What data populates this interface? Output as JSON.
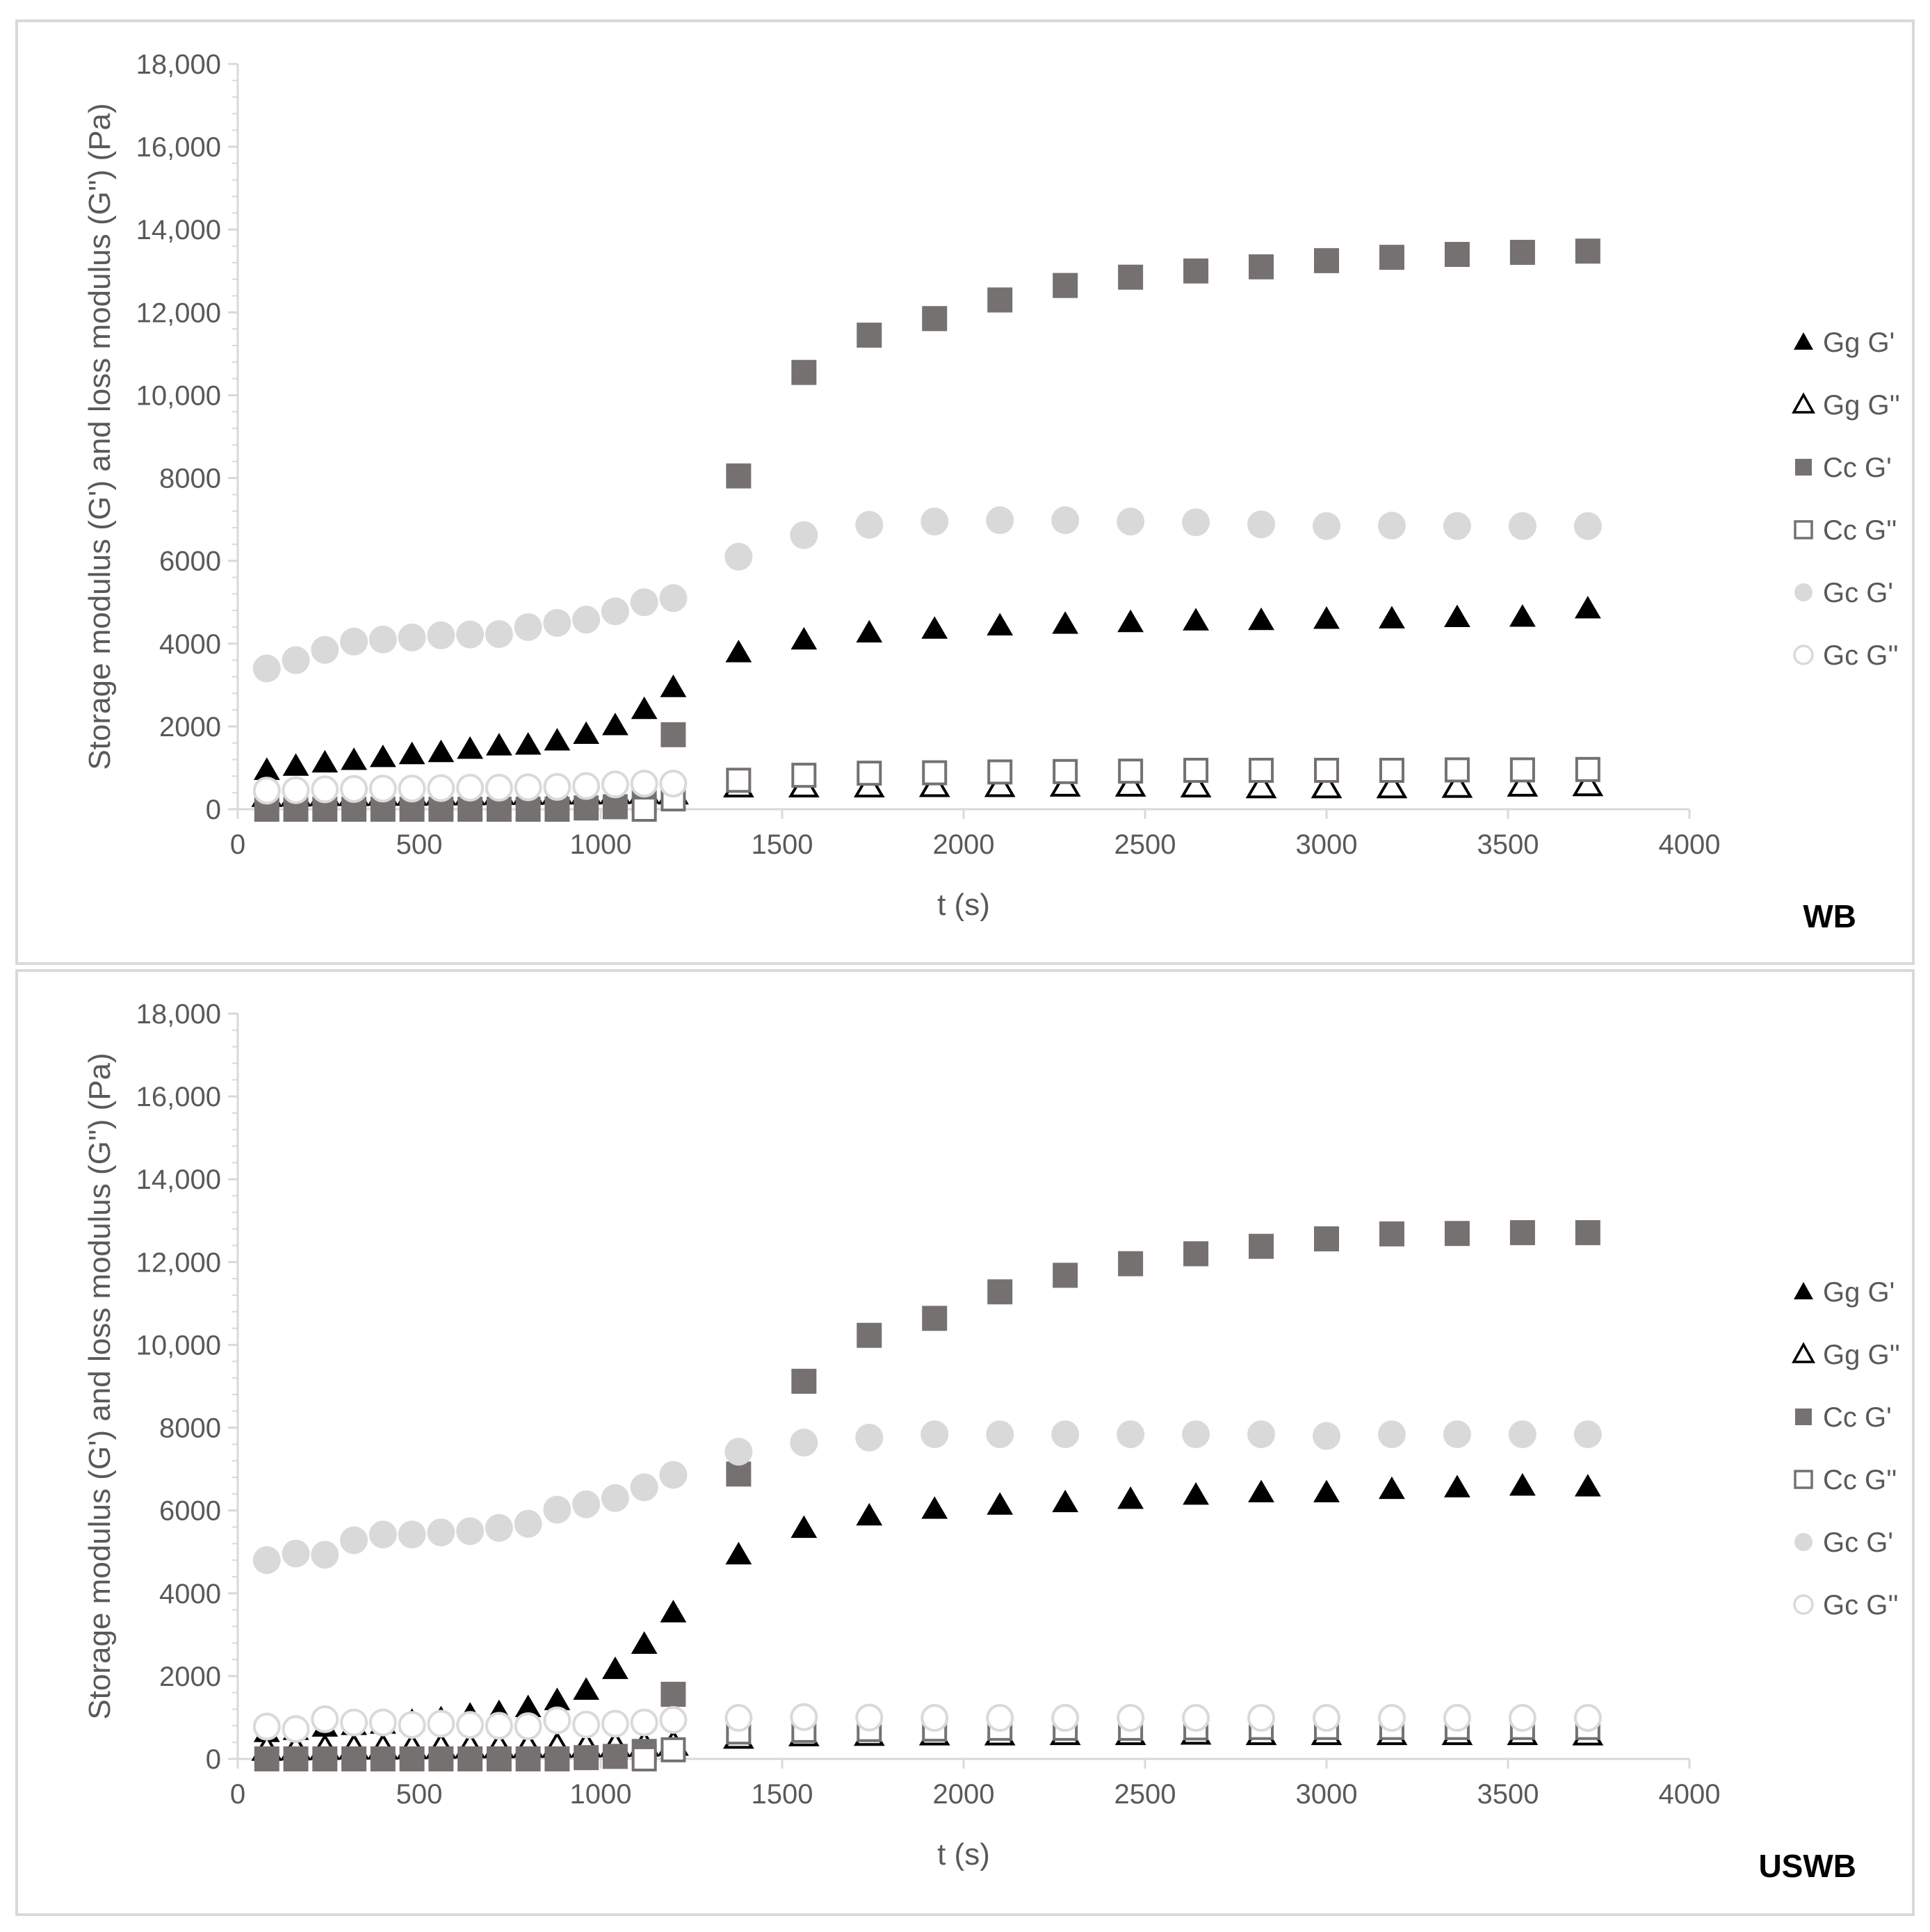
{
  "chart_data": [
    {
      "type": "scatter",
      "panel_label": "WB",
      "xlabel": "t (s)",
      "ylabel": "Storage modulus (G') and loss modulus (G'') (Pa)",
      "xlim": [
        0,
        4000
      ],
      "ylim": [
        0,
        18000
      ],
      "x_ticks": [
        0,
        500,
        1000,
        1500,
        2000,
        2500,
        3000,
        3500,
        4000
      ],
      "x_tick_labels": [
        "0",
        "500",
        "1000",
        "1500",
        "2000",
        "2500",
        "3000",
        "3500",
        "4000"
      ],
      "y_ticks": [
        0,
        2000,
        4000,
        6000,
        8000,
        10000,
        12000,
        14000,
        16000,
        18000
      ],
      "y_tick_labels": [
        "0",
        "2000",
        "4000",
        "6000",
        "8000",
        "10,000",
        "12,000",
        "14,000",
        "16,000",
        "18,000"
      ],
      "legend_position": "right",
      "series": [
        {
          "name": "Gg G'",
          "marker": "triangle",
          "filled": true,
          "color": "#000000",
          "x": [
            80,
            160,
            240,
            320,
            400,
            480,
            560,
            640,
            720,
            800,
            880,
            960,
            1040,
            1120,
            1200,
            1380,
            1560,
            1740,
            1920,
            2100,
            2280,
            2460,
            2640,
            2820,
            3000,
            3180,
            3360,
            3540,
            3720
          ],
          "y": [
            950,
            1050,
            1130,
            1190,
            1260,
            1330,
            1380,
            1460,
            1540,
            1560,
            1660,
            1820,
            2030,
            2420,
            2950,
            3790,
            4100,
            4270,
            4360,
            4440,
            4480,
            4520,
            4560,
            4570,
            4600,
            4610,
            4640,
            4650,
            4850
          ]
        },
        {
          "name": "Gg G''",
          "marker": "triangle",
          "filled": false,
          "color": "#000000",
          "x": [
            80,
            160,
            240,
            320,
            400,
            480,
            560,
            640,
            720,
            800,
            880,
            960,
            1040,
            1120,
            1200,
            1380,
            1560,
            1740,
            1920,
            2100,
            2280,
            2460,
            2640,
            2820,
            3000,
            3180,
            3360,
            3540,
            3720
          ],
          "y": [
            330,
            340,
            350,
            350,
            360,
            360,
            370,
            370,
            380,
            380,
            390,
            390,
            400,
            410,
            390,
            560,
            560,
            560,
            570,
            570,
            580,
            580,
            560,
            540,
            540,
            540,
            550,
            580,
            590
          ]
        },
        {
          "name": "Cc G'",
          "marker": "square",
          "filled": true,
          "color": "#767171",
          "x": [
            80,
            160,
            240,
            320,
            400,
            480,
            560,
            640,
            720,
            800,
            880,
            960,
            1040,
            1120,
            1200,
            1380,
            1560,
            1740,
            1920,
            2100,
            2280,
            2460,
            2640,
            2820,
            3000,
            3180,
            3360,
            3540,
            3720
          ],
          "y": [
            0,
            0,
            0,
            0,
            0,
            0,
            0,
            0,
            0,
            0,
            0,
            30,
            60,
            220,
            1800,
            8050,
            10550,
            11450,
            11850,
            12300,
            12650,
            12850,
            13000,
            13100,
            13250,
            13330,
            13400,
            13450,
            13480
          ]
        },
        {
          "name": "Cc G''",
          "marker": "square",
          "filled": false,
          "color": "#767171",
          "x": [
            1120,
            1200,
            1380,
            1560,
            1740,
            1920,
            2100,
            2280,
            2460,
            2640,
            2820,
            3000,
            3180,
            3360,
            3540,
            3720
          ],
          "y": [
            0,
            250,
            700,
            820,
            870,
            880,
            900,
            910,
            920,
            940,
            940,
            940,
            940,
            950,
            950,
            960
          ]
        },
        {
          "name": "Gc G'",
          "marker": "circle",
          "filled": true,
          "color": "#d9d9d9",
          "x": [
            80,
            160,
            240,
            320,
            400,
            480,
            560,
            640,
            720,
            800,
            880,
            960,
            1040,
            1120,
            1200,
            1380,
            1560,
            1740,
            1920,
            2100,
            2280,
            2460,
            2640,
            2820,
            3000,
            3180,
            3360,
            3540,
            3720
          ],
          "y": [
            3400,
            3600,
            3850,
            4050,
            4100,
            4150,
            4200,
            4220,
            4230,
            4400,
            4500,
            4580,
            4780,
            5000,
            5100,
            6100,
            6620,
            6870,
            6950,
            6980,
            6980,
            6950,
            6930,
            6880,
            6840,
            6850,
            6840,
            6840,
            6840
          ]
        },
        {
          "name": "Gc G''",
          "marker": "circle",
          "filled": false,
          "color": "#d9d9d9",
          "x": [
            80,
            160,
            240,
            320,
            400,
            480,
            560,
            640,
            720,
            800,
            880,
            960,
            1040,
            1120,
            1200
          ],
          "y": [
            450,
            460,
            480,
            490,
            500,
            500,
            510,
            520,
            520,
            530,
            540,
            560,
            600,
            620,
            620
          ]
        }
      ]
    },
    {
      "type": "scatter",
      "panel_label": "USWB",
      "xlabel": "t (s)",
      "ylabel": "Storage modulus (G') and loss modulus (G'') (Pa)",
      "xlim": [
        0,
        4000
      ],
      "ylim": [
        0,
        18000
      ],
      "x_ticks": [
        0,
        500,
        1000,
        1500,
        2000,
        2500,
        3000,
        3500,
        4000
      ],
      "x_tick_labels": [
        "0",
        "500",
        "1000",
        "1500",
        "2000",
        "2500",
        "3000",
        "3500",
        "4000"
      ],
      "y_ticks": [
        0,
        2000,
        4000,
        6000,
        8000,
        10000,
        12000,
        14000,
        16000,
        18000
      ],
      "y_tick_labels": [
        "0",
        "2000",
        "4000",
        "6000",
        "8000",
        "10,000",
        "12,000",
        "14,000",
        "16,000",
        "18,000"
      ],
      "legend_position": "right",
      "series": [
        {
          "name": "Gg G'",
          "marker": "triangle",
          "filled": true,
          "color": "#000000",
          "x": [
            80,
            160,
            240,
            320,
            400,
            480,
            560,
            640,
            720,
            800,
            880,
            960,
            1040,
            1120,
            1200,
            1380,
            1560,
            1740,
            1920,
            2100,
            2280,
            2460,
            2640,
            2820,
            3000,
            3180,
            3360,
            3540,
            3720
          ],
          "y": [
            650,
            700,
            780,
            820,
            850,
            920,
            980,
            1070,
            1130,
            1250,
            1420,
            1670,
            2170,
            2780,
            3540,
            4940,
            5580,
            5880,
            6040,
            6140,
            6200,
            6280,
            6380,
            6440,
            6440,
            6520,
            6560,
            6600,
            6580
          ]
        },
        {
          "name": "Gg G''",
          "marker": "triangle",
          "filled": false,
          "color": "#000000",
          "x": [
            80,
            160,
            240,
            320,
            400,
            480,
            560,
            640,
            720,
            800,
            880,
            960,
            1040,
            1120,
            1200,
            1380,
            1560,
            1740,
            1920,
            2100,
            2280,
            2460,
            2640,
            2820,
            3000,
            3180,
            3360,
            3540,
            3720
          ],
          "y": [
            230,
            240,
            250,
            260,
            260,
            270,
            280,
            290,
            290,
            300,
            300,
            310,
            320,
            330,
            350,
            520,
            580,
            590,
            600,
            600,
            610,
            610,
            620,
            610,
            610,
            610,
            610,
            610,
            600
          ]
        },
        {
          "name": "Cc G'",
          "marker": "square",
          "filled": true,
          "color": "#767171",
          "x": [
            80,
            160,
            240,
            320,
            400,
            480,
            560,
            640,
            720,
            800,
            880,
            960,
            1040,
            1120,
            1200,
            1380,
            1560,
            1740,
            1920,
            2100,
            2280,
            2460,
            2640,
            2820,
            3000,
            3180,
            3360,
            3540,
            3720
          ],
          "y": [
            0,
            0,
            0,
            0,
            0,
            0,
            0,
            0,
            0,
            0,
            0,
            30,
            60,
            180,
            1560,
            6880,
            9120,
            10230,
            10640,
            11280,
            11680,
            11960,
            12200,
            12380,
            12560,
            12680,
            12690,
            12710,
            12710
          ]
        },
        {
          "name": "Cc G''",
          "marker": "square",
          "filled": false,
          "color": "#767171",
          "x": [
            1120,
            1200,
            1380,
            1560,
            1740,
            1920,
            2100,
            2280,
            2460,
            2640,
            2820,
            3000,
            3180,
            3360,
            3540,
            3720
          ],
          "y": [
            0,
            220,
            650,
            690,
            710,
            720,
            740,
            740,
            740,
            750,
            760,
            760,
            760,
            760,
            760,
            760
          ]
        },
        {
          "name": "Gc G'",
          "marker": "circle",
          "filled": true,
          "color": "#d9d9d9",
          "x": [
            80,
            160,
            240,
            320,
            400,
            480,
            560,
            640,
            720,
            800,
            880,
            960,
            1040,
            1120,
            1200,
            1380,
            1560,
            1740,
            1920,
            2100,
            2280,
            2460,
            2640,
            2820,
            3000,
            3180,
            3360,
            3540,
            3720
          ],
          "y": [
            4800,
            4960,
            4930,
            5280,
            5420,
            5420,
            5470,
            5500,
            5580,
            5680,
            6020,
            6150,
            6300,
            6560,
            6860,
            7420,
            7640,
            7760,
            7840,
            7840,
            7840,
            7840,
            7840,
            7840,
            7800,
            7840,
            7840,
            7840,
            7840
          ]
        },
        {
          "name": "Gc G''",
          "marker": "circle",
          "filled": false,
          "color": "#d9d9d9",
          "x": [
            80,
            160,
            240,
            320,
            400,
            480,
            560,
            640,
            720,
            800,
            880,
            960,
            1040,
            1120,
            1200,
            1380,
            1560,
            1740,
            1920,
            2100,
            2280,
            2460,
            2640,
            2820,
            3000,
            3180,
            3360,
            3540,
            3720
          ],
          "y": [
            780,
            720,
            960,
            880,
            880,
            820,
            850,
            820,
            800,
            790,
            930,
            830,
            850,
            880,
            940,
            990,
            1010,
            1000,
            990,
            990,
            990,
            990,
            990,
            990,
            990,
            990,
            990,
            990,
            990
          ]
        }
      ]
    }
  ]
}
